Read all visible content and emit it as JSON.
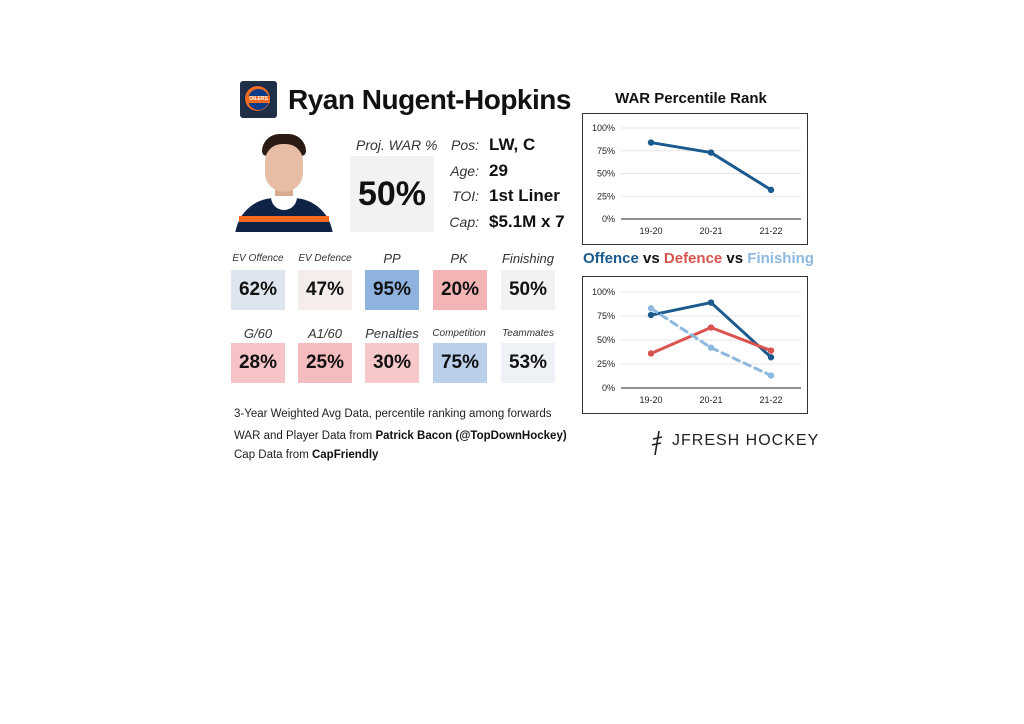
{
  "player": {
    "name": "Ryan Nugent-Hopkins",
    "team_logo_icon": "oilers-logo-icon",
    "team_logo_text": "OILERS"
  },
  "projection": {
    "label": "Proj. WAR %",
    "value": "50%"
  },
  "info": [
    {
      "label": "Pos:",
      "value": "LW, C"
    },
    {
      "label": "Age:",
      "value": "29"
    },
    {
      "label": "TOI:",
      "value": "1st Liner"
    },
    {
      "label": "Cap:",
      "value": "$5.1M x 7"
    }
  ],
  "stats_row1": [
    {
      "label": "EV Offence",
      "value": "62%",
      "pct": 62,
      "color": "#dde6ef"
    },
    {
      "label": "EV Defence",
      "value": "47%",
      "pct": 47,
      "color": "#f5ecec"
    },
    {
      "label": "PP",
      "value": "95%",
      "pct": 95,
      "color": "#8fb3df"
    },
    {
      "label": "PK",
      "value": "20%",
      "pct": 20,
      "color": "#f3b4b6"
    },
    {
      "label": "Finishing",
      "value": "50%",
      "pct": 50,
      "color": "#f2f2f2"
    }
  ],
  "stats_row2": [
    {
      "label": "G/60",
      "value": "28%",
      "pct": 28,
      "color": "#f6c4c6"
    },
    {
      "label": "A1/60",
      "value": "25%",
      "pct": 25,
      "color": "#f4bcbe"
    },
    {
      "label": "Penalties",
      "value": "30%",
      "pct": 30,
      "color": "#f6c8ca"
    },
    {
      "label": "Competition",
      "value": "75%",
      "pct": 75,
      "color": "#b9cfea"
    },
    {
      "label": "Teammates",
      "value": "53%",
      "pct": 53,
      "color": "#eef1f5"
    }
  ],
  "footer": {
    "line1": "3-Year Weighted Avg Data, percentile ranking among forwards",
    "line2_prefix": "WAR and Player Data from ",
    "line2_bold": "Patrick Bacon (@TopDownHockey)",
    "line3_prefix": "Cap Data from ",
    "line3_bold": "CapFriendly"
  },
  "brand": "JFRESH HOCKEY",
  "chart_data": [
    {
      "type": "line",
      "title": "WAR Percentile Rank",
      "categories": [
        "19-20",
        "20-21",
        "21-22"
      ],
      "ylim": [
        0,
        100
      ],
      "yticks": [
        "0%",
        "25%",
        "50%",
        "75%",
        "100%"
      ],
      "grid": true,
      "series": [
        {
          "values": [
            84,
            73,
            32
          ],
          "color": "#1a5a8e",
          "dashed": false
        }
      ]
    },
    {
      "type": "line",
      "title_parts": [
        {
          "text": "Offence",
          "color": "#1a5a8e"
        },
        {
          "text": " vs ",
          "color": "#111111"
        },
        {
          "text": "Defence",
          "color": "#d9534f"
        },
        {
          "text": " vs ",
          "color": "#111111"
        },
        {
          "text": "Finishing",
          "color": "#8db8df"
        }
      ],
      "categories": [
        "19-20",
        "20-21",
        "21-22"
      ],
      "ylim": [
        0,
        100
      ],
      "yticks": [
        "0%",
        "25%",
        "50%",
        "75%",
        "100%"
      ],
      "grid": true,
      "series": [
        {
          "name": "Offence",
          "values": [
            76,
            89,
            32
          ],
          "color": "#1a5a8e",
          "dashed": false
        },
        {
          "name": "Defence",
          "values": [
            36,
            63,
            39
          ],
          "color": "#d9534f",
          "dashed": false
        },
        {
          "name": "Finishing",
          "values": [
            83,
            42,
            13
          ],
          "color": "#8db8df",
          "dashed": true
        }
      ]
    }
  ]
}
